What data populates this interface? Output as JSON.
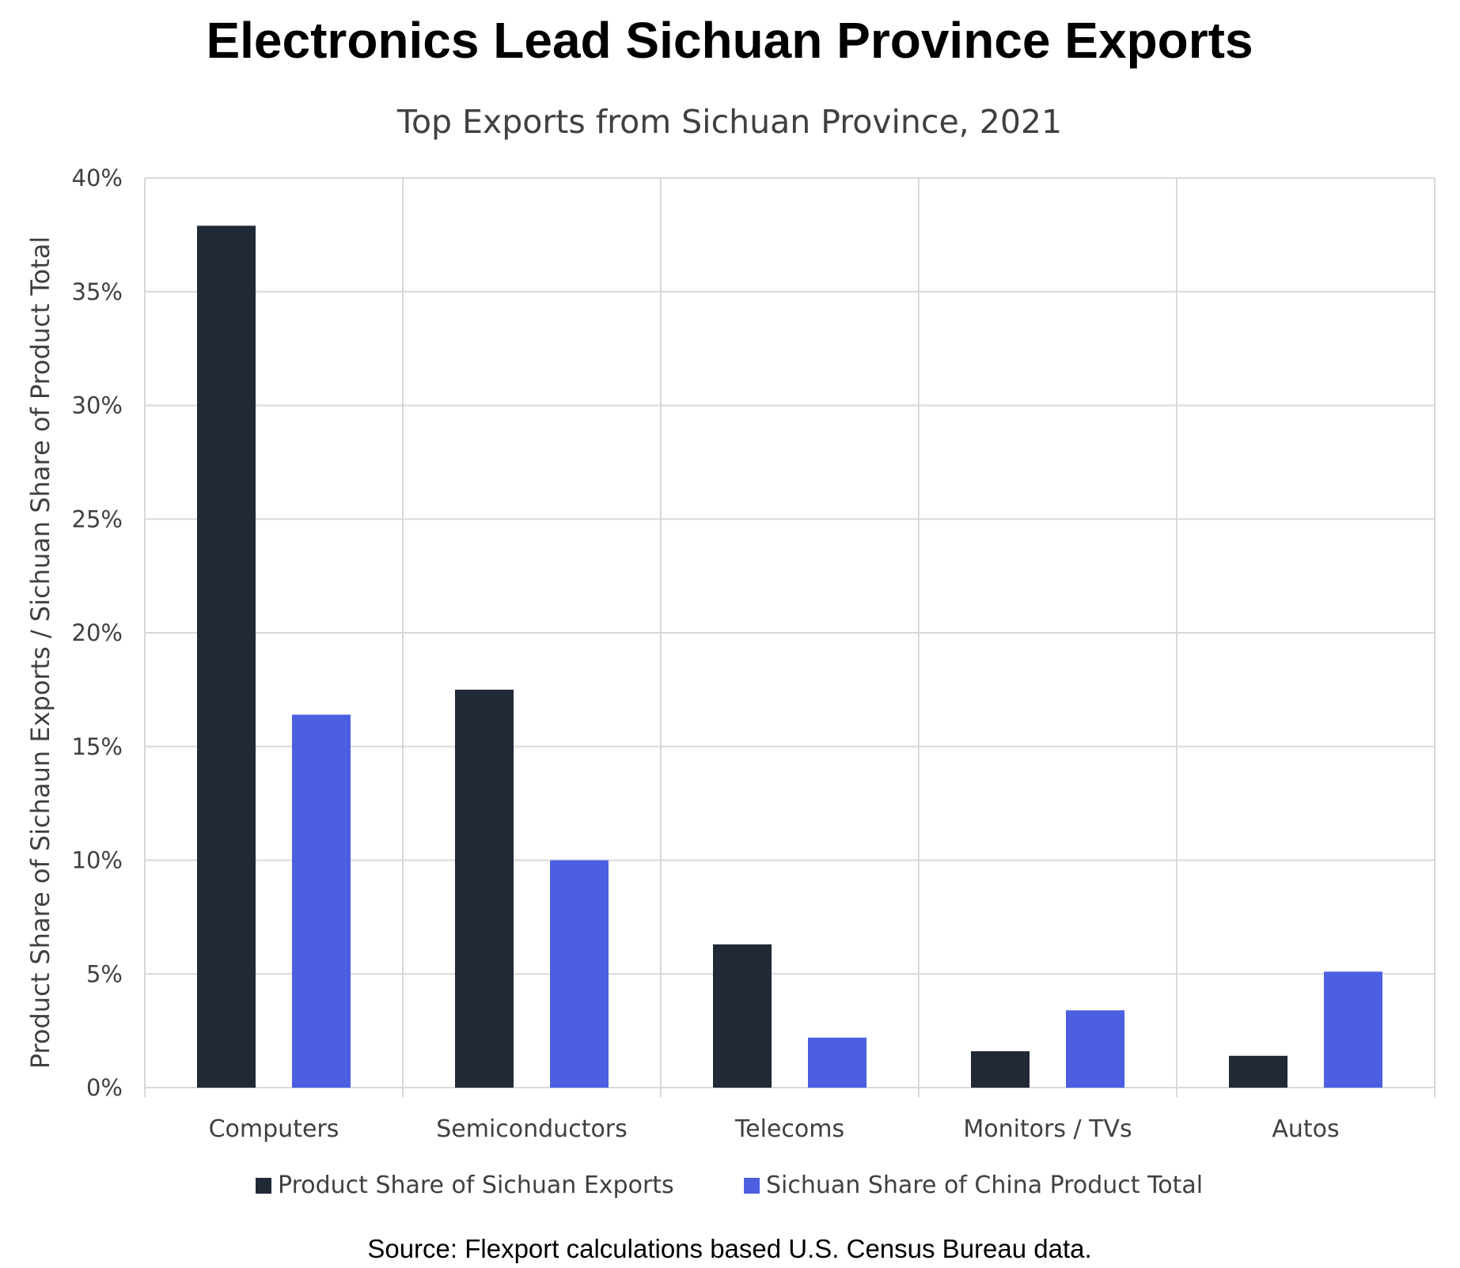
{
  "colors": {
    "series_1": "#212836",
    "series_2": "#4b5fe0",
    "grid": "#d9d9d9",
    "text": "#404040"
  },
  "chart_data": {
    "type": "bar",
    "title": "Electronics Lead Sichuan Province Exports",
    "subtitle": "Top Exports from Sichuan Province, 2021",
    "ylabel": "Product Share of Sichaun Exports / Sichuan Share of Product Total",
    "xlabel": "",
    "ylim": [
      0,
      40
    ],
    "yticks": [
      "0%",
      "5%",
      "10%",
      "15%",
      "20%",
      "25%",
      "30%",
      "35%",
      "40%"
    ],
    "categories": [
      "Computers",
      "Semiconductors",
      "Telecoms",
      "Monitors / TVs",
      "Autos"
    ],
    "series": [
      {
        "name": "Product Share of Sichuan Exports",
        "values": [
          37.9,
          17.5,
          6.3,
          1.6,
          1.4
        ]
      },
      {
        "name": "Sichuan Share of China Product Total",
        "values": [
          16.4,
          10.0,
          2.2,
          3.4,
          5.1
        ]
      }
    ],
    "grid": true,
    "legend": "bottom",
    "source": "Source: Flexport calculations based U.S. Census Bureau data."
  }
}
